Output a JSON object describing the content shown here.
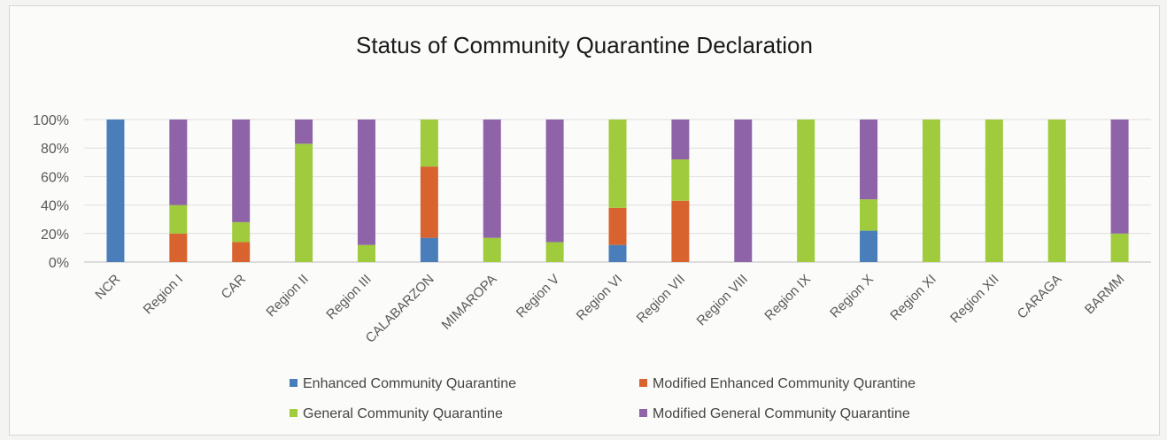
{
  "chart_data": {
    "type": "bar",
    "stacked": true,
    "percent_stacked": true,
    "title": "Status of Community Quarantine Declaration",
    "xlabel": "",
    "ylabel": "",
    "ylim": [
      0,
      100
    ],
    "y_ticks": [
      "0%",
      "20%",
      "40%",
      "60%",
      "80%",
      "100%"
    ],
    "grid": true,
    "legend_position": "bottom",
    "categories": [
      "NCR",
      "Region I",
      "CAR",
      "Region II",
      "Region III",
      "CALABARZON",
      "MIMAROPA",
      "Region V",
      "Region VI",
      "Region VII",
      "Region VIII",
      "Region IX",
      "Region X",
      "Region XI",
      "Region XII",
      "CARAGA",
      "BARMM"
    ],
    "series": [
      {
        "name": "Enhanced Community Quarantine",
        "color": "#4a7ebb",
        "values": [
          100,
          0,
          0,
          0,
          0,
          17,
          0,
          0,
          12,
          0,
          0,
          0,
          22,
          0,
          0,
          0,
          0
        ]
      },
      {
        "name": "Modified Enhanced Community Qurantine",
        "color": "#d9632f",
        "values": [
          0,
          20,
          14,
          0,
          0,
          50,
          0,
          0,
          26,
          43,
          0,
          0,
          0,
          0,
          0,
          0,
          0
        ]
      },
      {
        "name": "General Community Quarantine",
        "color": "#9fcb3c",
        "values": [
          0,
          20,
          14,
          83,
          12,
          33,
          17,
          14,
          62,
          29,
          0,
          100,
          22,
          100,
          100,
          100,
          20
        ]
      },
      {
        "name": "Modified General Community Quarantine",
        "color": "#8f63a8",
        "values": [
          0,
          60,
          72,
          17,
          88,
          0,
          83,
          86,
          0,
          28,
          100,
          0,
          56,
          0,
          0,
          0,
          80
        ]
      }
    ]
  }
}
